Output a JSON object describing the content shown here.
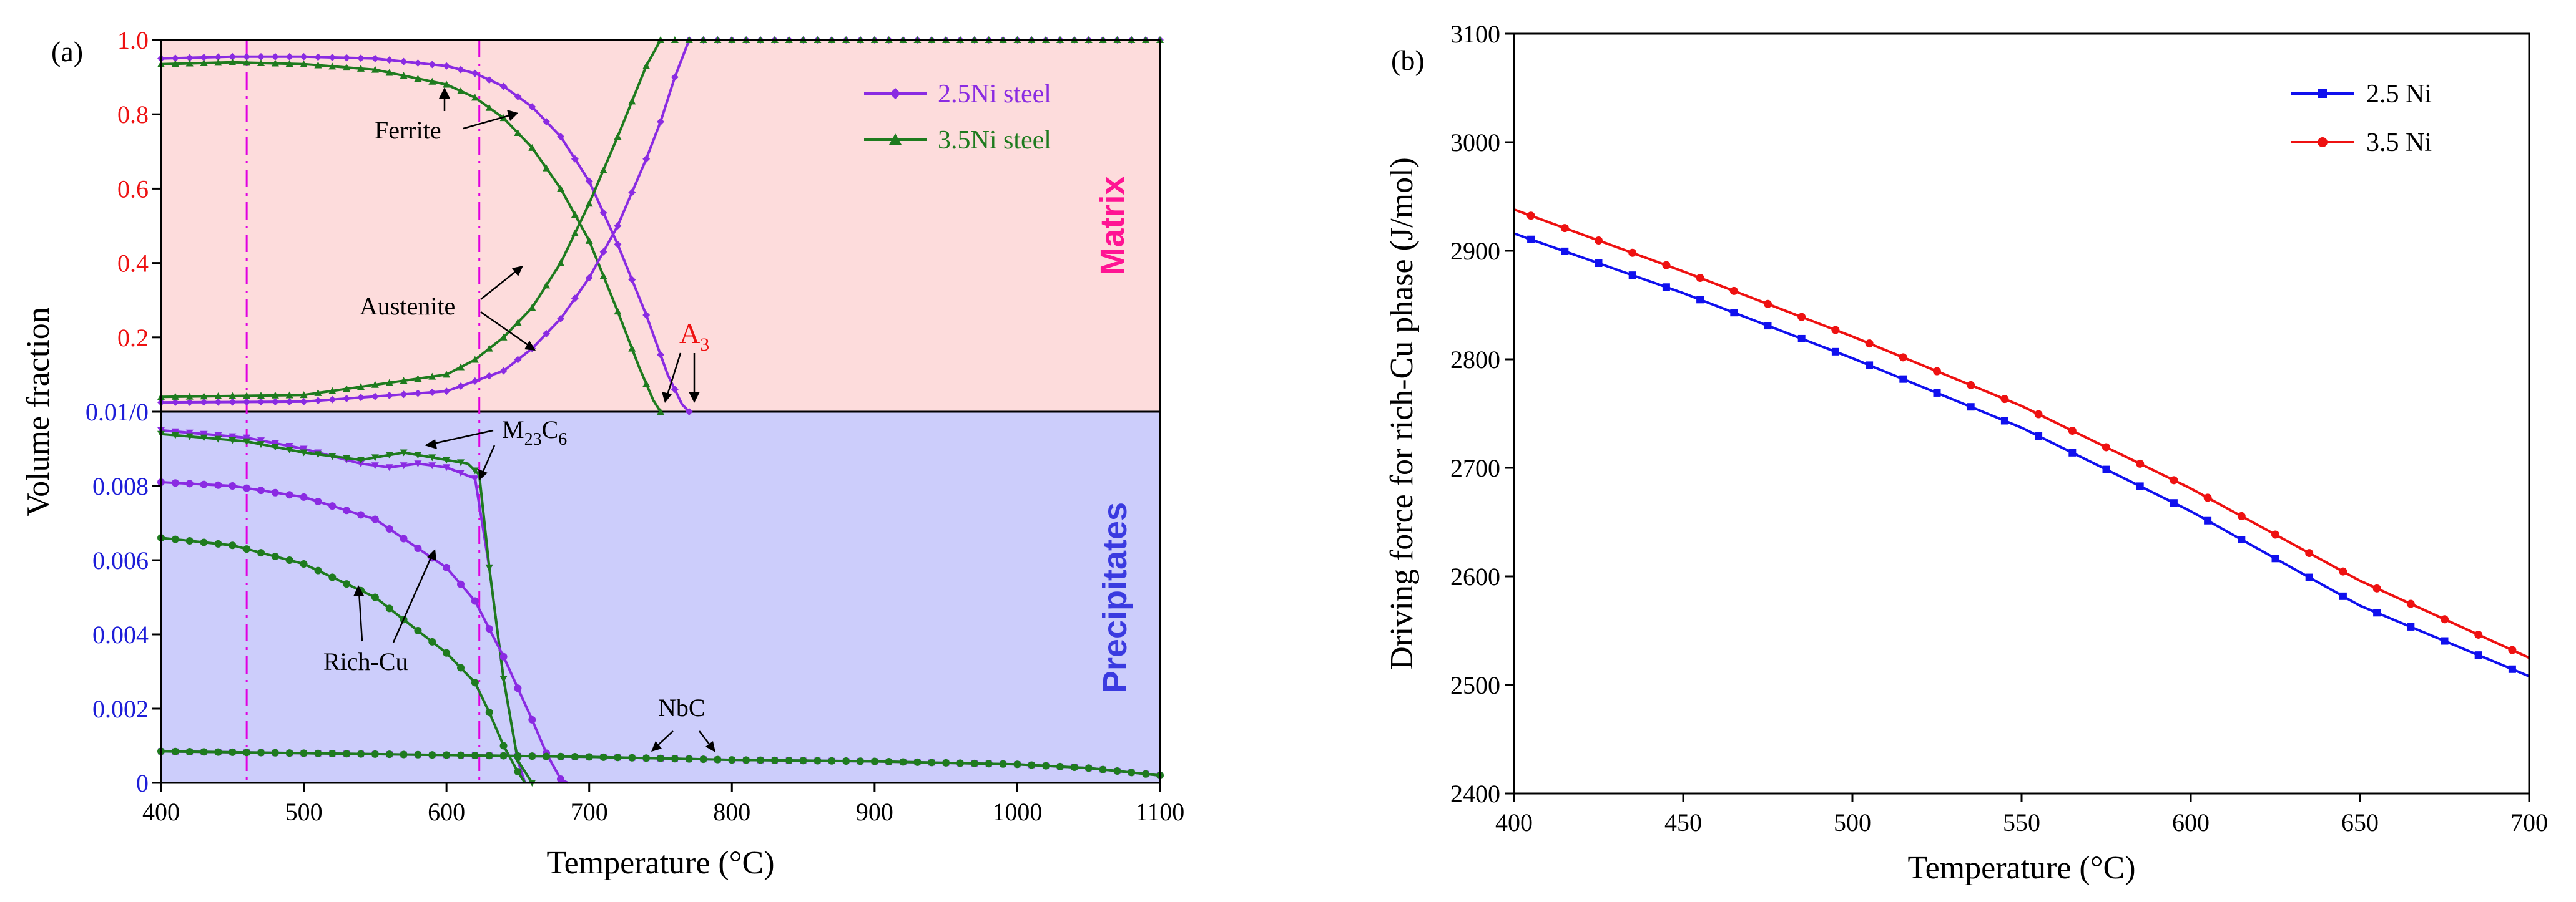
{
  "colors": {
    "purple": "#8a2be2",
    "green": "#1e7b1e",
    "blue": "#1010ee",
    "red": "#ee1111",
    "matrix_bg": "#fddcdc",
    "precip_bg": "#cccdfb",
    "red_tick": "#ee1111",
    "blue_tick": "#1d1dd8",
    "matrix_label": "#ff1493",
    "precip_label": "#3a3ae0",
    "guide": "#e000e0"
  },
  "chart_data": [
    {
      "type": "line",
      "panel_label": "(a)",
      "xlabel": "Temperature (°C)",
      "ylabel": "Volume fraction",
      "xlim": [
        400,
        1100
      ],
      "x_ticks": [
        "400",
        "500",
        "600",
        "700",
        "800",
        "900",
        "1000",
        "1100"
      ],
      "matrix_ticks": [
        "0.2",
        "0.4",
        "0.6",
        "0.8",
        "1.0"
      ],
      "split_tick": "0.01/0",
      "precip_ticks": [
        "0",
        "0.002",
        "0.004",
        "0.006",
        "0.008"
      ],
      "upper_ylim": [
        0,
        1.0
      ],
      "lower_ylim": [
        0,
        0.01
      ],
      "region_labels": {
        "matrix": "Matrix",
        "precipitates": "Precipitates"
      },
      "guide_lines_x": [
        460,
        623
      ],
      "legend": [
        "2.5Ni steel",
        "3.5Ni steel"
      ],
      "annotations": {
        "ferrite": "Ferrite",
        "austenite": "Austenite",
        "a3_main": "A",
        "a3_sub": "3",
        "m23c6_main": "M",
        "m23c6_sub1": "23",
        "m23c6_mid": "C",
        "m23c6_sub2": "6",
        "rich_cu": "Rich-Cu",
        "nbc": "NbC"
      },
      "series": [
        {
          "name": "2.5Ni steel Ferrite",
          "panel": "upper",
          "x": [
            400,
            450,
            500,
            550,
            600,
            620,
            640,
            660,
            680,
            700,
            720,
            740,
            755,
            765,
            770
          ],
          "y": [
            0.95,
            0.955,
            0.955,
            0.95,
            0.93,
            0.91,
            0.875,
            0.82,
            0.74,
            0.62,
            0.45,
            0.26,
            0.1,
            0.02,
            0
          ]
        },
        {
          "name": "3.5Ni steel Ferrite",
          "panel": "upper",
          "x": [
            400,
            450,
            500,
            550,
            600,
            620,
            640,
            660,
            680,
            700,
            720,
            735,
            745,
            750
          ],
          "y": [
            0.935,
            0.94,
            0.935,
            0.92,
            0.88,
            0.845,
            0.79,
            0.71,
            0.6,
            0.46,
            0.27,
            0.12,
            0.03,
            0
          ]
        },
        {
          "name": "2.5Ni steel Austenite",
          "panel": "upper",
          "x": [
            400,
            500,
            600,
            640,
            660,
            680,
            700,
            720,
            740,
            750,
            760,
            770,
            1100
          ],
          "y": [
            0.025,
            0.027,
            0.055,
            0.11,
            0.17,
            0.25,
            0.36,
            0.5,
            0.68,
            0.78,
            0.9,
            1.0,
            1.0
          ]
        },
        {
          "name": "3.5Ni steel Austenite",
          "panel": "upper",
          "x": [
            400,
            500,
            600,
            620,
            640,
            660,
            680,
            700,
            720,
            740,
            750,
            760,
            1100
          ],
          "y": [
            0.04,
            0.045,
            0.1,
            0.14,
            0.2,
            0.28,
            0.4,
            0.56,
            0.74,
            0.93,
            1.0,
            1.0,
            1.0
          ]
        },
        {
          "name": "2.5Ni steel M23C6",
          "panel": "lower",
          "x": [
            400,
            460,
            500,
            540,
            560,
            580,
            600,
            620,
            630,
            640,
            650,
            655
          ],
          "y": [
            0.0095,
            0.0093,
            0.009,
            0.0086,
            0.0085,
            0.0086,
            0.0085,
            0.0082,
            0.0058,
            0.0028,
            0.0006,
            0
          ]
        },
        {
          "name": "3.5Ni steel M23C6",
          "panel": "lower",
          "x": [
            400,
            460,
            500,
            540,
            570,
            600,
            615,
            623,
            630,
            640,
            650,
            660
          ],
          "y": [
            0.0094,
            0.0092,
            0.0089,
            0.0087,
            0.0089,
            0.0087,
            0.0086,
            0.0083,
            0.0058,
            0.0028,
            0.0006,
            0
          ]
        },
        {
          "name": "2.5Ni steel Rich-Cu",
          "panel": "lower",
          "x": [
            400,
            450,
            500,
            550,
            600,
            620,
            640,
            660,
            670,
            680,
            685
          ],
          "y": [
            0.0081,
            0.008,
            0.0077,
            0.0071,
            0.0058,
            0.0049,
            0.0034,
            0.0017,
            0.0008,
            0.0001,
            0
          ]
        },
        {
          "name": "3.5Ni steel Rich-Cu",
          "panel": "lower",
          "x": [
            400,
            450,
            500,
            550,
            600,
            620,
            630,
            640,
            650,
            655
          ],
          "y": [
            0.0066,
            0.0064,
            0.0059,
            0.005,
            0.0035,
            0.0027,
            0.0019,
            0.001,
            0.0003,
            0
          ]
        },
        {
          "name": "2.5Ni steel NbC",
          "panel": "lower",
          "x": [
            400,
            500,
            600,
            700,
            800,
            900,
            1000,
            1050,
            1100
          ],
          "y": [
            0.00085,
            0.0008,
            0.00075,
            0.0007,
            0.00062,
            0.00058,
            0.0005,
            0.0004,
            0.0002
          ]
        },
        {
          "name": "3.5Ni steel NbC",
          "panel": "lower",
          "x": [
            400,
            500,
            600,
            700,
            800,
            900,
            1000,
            1050,
            1100
          ],
          "y": [
            0.00085,
            0.0008,
            0.00075,
            0.0007,
            0.00062,
            0.00058,
            0.0005,
            0.0004,
            0.0002
          ]
        }
      ]
    },
    {
      "type": "line",
      "panel_label": "(b)",
      "xlabel": "Temperature (°C)",
      "ylabel": "Driving force for rich-Cu phase (J/mol)",
      "xlim": [
        400,
        700
      ],
      "ylim": [
        2400,
        3100
      ],
      "x_ticks": [
        "400",
        "450",
        "500",
        "550",
        "600",
        "650",
        "700"
      ],
      "y_ticks": [
        "2400",
        "2500",
        "2600",
        "2700",
        "2800",
        "2900",
        "3000",
        "3100"
      ],
      "legend": [
        "2.5 Ni",
        "3.5 Ni"
      ],
      "series": [
        {
          "name": "2.5 Ni",
          "x": [
            400,
            450,
            500,
            550,
            600,
            650,
            700
          ],
          "y": [
            2916,
            2861,
            2801,
            2737,
            2660,
            2573,
            2508
          ]
        },
        {
          "name": "3.5 Ni",
          "x": [
            400,
            450,
            500,
            550,
            600,
            650,
            700
          ],
          "y": [
            2938,
            2881,
            2821,
            2757,
            2681,
            2596,
            2525
          ]
        }
      ]
    }
  ]
}
